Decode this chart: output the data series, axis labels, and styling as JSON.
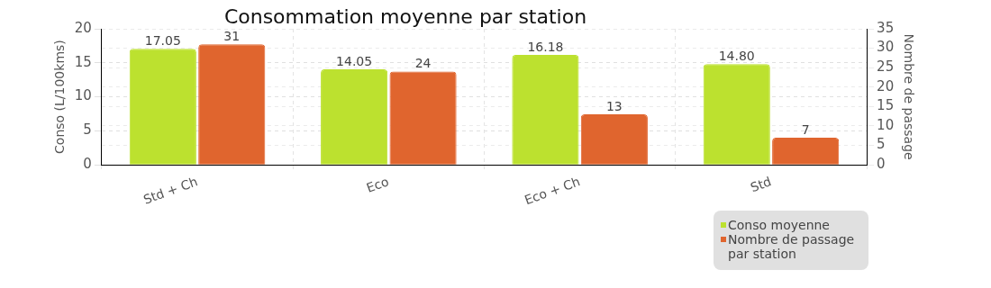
{
  "chart_data": {
    "type": "bar",
    "title": "Consommation moyenne par station",
    "categories": [
      "Std + Ch",
      "Eco",
      "Eco + Ch",
      "Std"
    ],
    "series": [
      {
        "name": "Conso moyenne",
        "color": "#bce12f",
        "values": [
          17.05,
          14.05,
          16.18,
          14.8
        ],
        "value_labels": [
          "17.05",
          "14.05",
          "16.18",
          "14.80"
        ]
      },
      {
        "name": "Nombre de passage par station",
        "color": "#e0652e",
        "axis": "y2",
        "values": [
          31,
          24,
          13,
          7
        ],
        "value_labels": [
          "31",
          "24",
          "13",
          "7"
        ]
      }
    ],
    "ylabel": "Conso (L/100kms)",
    "y2label": "Nombre de passage",
    "ylim": [
      0,
      20
    ],
    "yticks": [
      0,
      5,
      10,
      15,
      20
    ],
    "y2lim": [
      0,
      35
    ],
    "y2ticks": [
      0,
      5,
      10,
      15,
      20,
      25,
      30,
      35
    ],
    "grid": true,
    "legend": "bottom right"
  }
}
